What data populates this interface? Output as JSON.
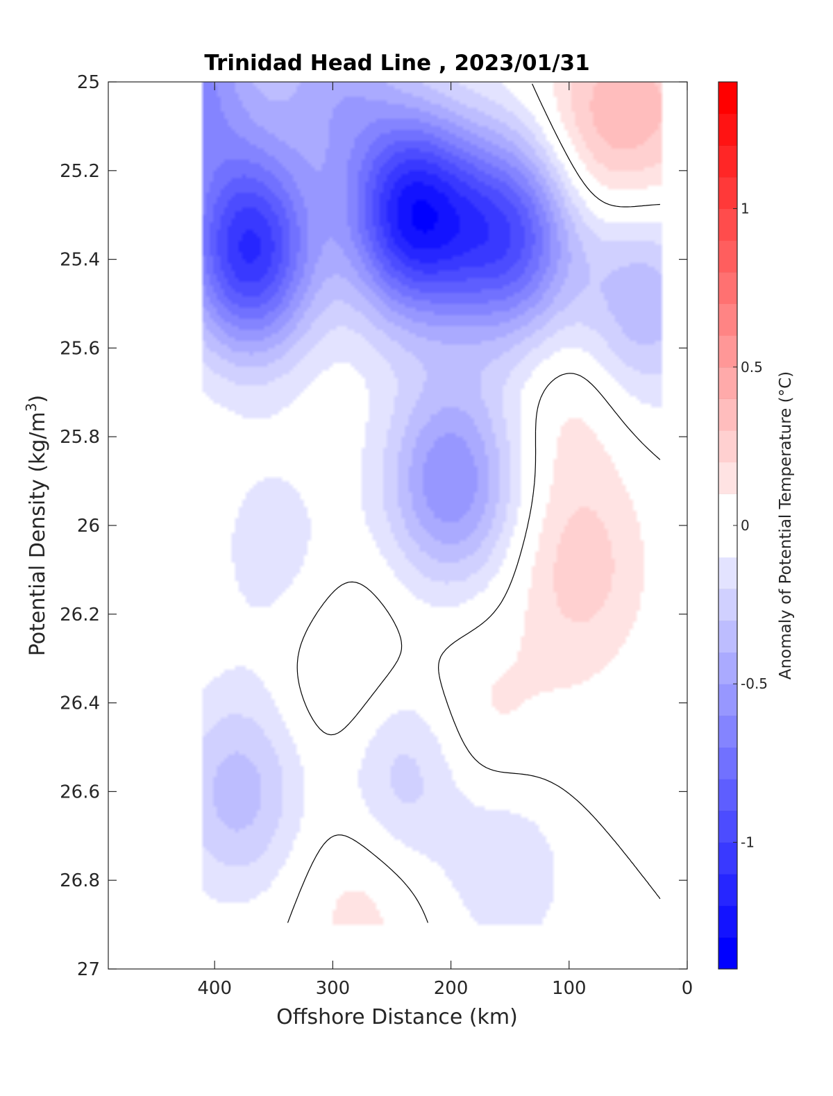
{
  "chart_data": {
    "type": "heatmap",
    "title": "Trinidad Head Line , 2023/01/31",
    "xlabel": "Offshore Distance (km)",
    "ylabel_main": "Potential Density (kg/m",
    "ylabel_sup": "3",
    "ylabel_close": ")",
    "colorbar_label": "Anomaly of Potential Temperature (°C)",
    "xlim": [
      490,
      0
    ],
    "x_reversed": true,
    "ylim": [
      27,
      25
    ],
    "y_reversed": true,
    "x_ticks": [
      400,
      300,
      200,
      100,
      0
    ],
    "x_tick_labels": [
      "400",
      "300",
      "200",
      "100",
      "0"
    ],
    "y_ticks": [
      25,
      25.2,
      25.4,
      25.6,
      25.8,
      26,
      26.2,
      26.4,
      26.6,
      26.8,
      27
    ],
    "y_tick_labels": [
      "25",
      "25.2",
      "25.4",
      "25.6",
      "25.8",
      "26",
      "26.2",
      "26.4",
      "26.6",
      "26.8",
      "27"
    ],
    "colorbar_range": [
      -1.4,
      1.4
    ],
    "colorbar_ticks": [
      1,
      0.5,
      0,
      -0.5,
      -1
    ],
    "colorbar_tick_labels": [
      "1",
      "0.5",
      "0",
      "-0.5",
      "-1"
    ],
    "contour_level_step": 0.1,
    "zero_contour": true,
    "colors": {
      "negative": "#0000ff",
      "positive": "#ff0000",
      "zero": "#ffffff"
    },
    "data_extent": {
      "x": [
        410,
        20
      ],
      "y": [
        25,
        26.9
      ]
    },
    "features": [
      {
        "x": 370,
        "y": 25.38,
        "value": -1.1
      },
      {
        "x": 232,
        "y": 25.3,
        "value": -1.2
      },
      {
        "x": 150,
        "y": 25.35,
        "value": -0.9
      },
      {
        "x": 420,
        "y": 25.0,
        "value": -0.6
      },
      {
        "x": 300,
        "y": 25.0,
        "value": -0.4
      },
      {
        "x": 75,
        "y": 25.1,
        "value": 0.3
      },
      {
        "x": 40,
        "y": 25.5,
        "value": -0.4
      },
      {
        "x": 90,
        "y": 26.1,
        "value": 0.25
      },
      {
        "x": 95,
        "y": 25.7,
        "value": 0.15
      },
      {
        "x": 380,
        "y": 26.6,
        "value": -0.35
      },
      {
        "x": 285,
        "y": 26.35,
        "value": 0.15
      },
      {
        "x": 180,
        "y": 26.45,
        "value": 0.15
      },
      {
        "x": 275,
        "y": 26.85,
        "value": 0.15
      },
      {
        "x": 240,
        "y": 26.55,
        "value": -0.3
      },
      {
        "x": 200,
        "y": 25.9,
        "value": -0.6
      },
      {
        "x": 110,
        "y": 26.55,
        "value": 0.05
      },
      {
        "x": 150,
        "y": 26.75,
        "value": -0.2
      },
      {
        "x": 350,
        "y": 26.05,
        "value": -0.15
      },
      {
        "x": 20,
        "y": 25.05,
        "value": 0.2
      }
    ]
  }
}
